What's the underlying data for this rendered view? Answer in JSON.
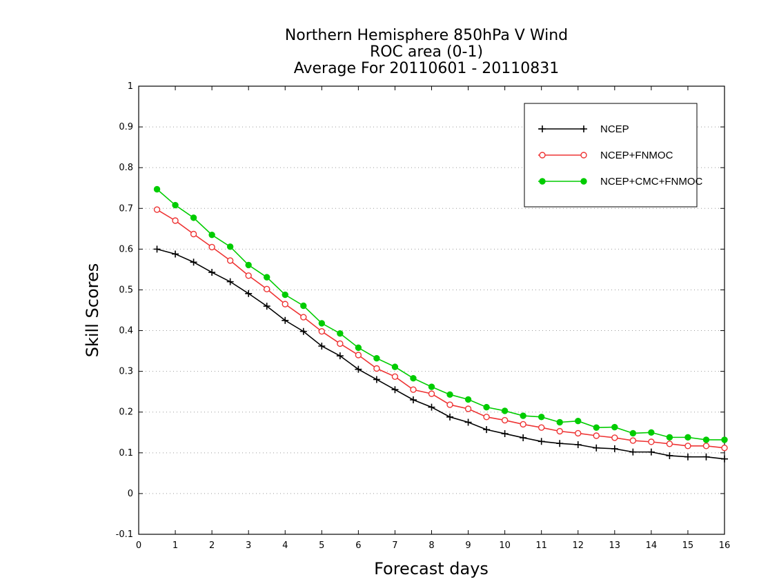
{
  "chart_data": {
    "type": "line",
    "title": [
      "Northern Hemisphere 850hPa V Wind",
      "ROC area (0-1)",
      "Average For 20110601 - 20110831"
    ],
    "xlabel": "Forecast days",
    "ylabel": "Skill Scores",
    "xlim": [
      0,
      16
    ],
    "ylim": [
      -0.1,
      1
    ],
    "xticks": [
      "0",
      "1",
      "2",
      "3",
      "4",
      "5",
      "6",
      "7",
      "8",
      "9",
      "10",
      "11",
      "12",
      "13",
      "14",
      "15",
      "16"
    ],
    "yticks": [
      "-0.1",
      "0",
      "0.1",
      "0.2",
      "0.3",
      "0.4",
      "0.5",
      "0.6",
      "0.7",
      "0.8",
      "0.9",
      "1"
    ],
    "grid": "horizontal-dotted",
    "legend_position": "top-right",
    "x": [
      0.5,
      1,
      1.5,
      2,
      2.5,
      3,
      3.5,
      4,
      4.5,
      5,
      5.5,
      6,
      6.5,
      7,
      7.5,
      8,
      8.5,
      9,
      9.5,
      10,
      10.5,
      11,
      11.5,
      12,
      12.5,
      13,
      13.5,
      14,
      14.5,
      15,
      15.5,
      16
    ],
    "series": [
      {
        "name": "NCEP",
        "color": "#000000",
        "marker": "plus",
        "values": [
          0.6,
          0.588,
          0.568,
          0.543,
          0.52,
          0.491,
          0.46,
          0.425,
          0.398,
          0.362,
          0.338,
          0.305,
          0.28,
          0.255,
          0.23,
          0.212,
          0.188,
          0.175,
          0.157,
          0.147,
          0.137,
          0.128,
          0.123,
          0.12,
          0.112,
          0.11,
          0.102,
          0.102,
          0.093,
          0.09,
          0.09,
          0.085
        ]
      },
      {
        "name": "NCEP+FNMOC",
        "color": "#ee3333",
        "marker": "open-circle",
        "values": [
          0.697,
          0.67,
          0.637,
          0.605,
          0.572,
          0.535,
          0.502,
          0.465,
          0.433,
          0.398,
          0.368,
          0.34,
          0.307,
          0.287,
          0.255,
          0.245,
          0.218,
          0.208,
          0.188,
          0.18,
          0.17,
          0.162,
          0.153,
          0.148,
          0.142,
          0.137,
          0.13,
          0.127,
          0.122,
          0.117,
          0.117,
          0.112
        ]
      },
      {
        "name": "NCEP+CMC+FNMOC",
        "color": "#00cc00",
        "marker": "filled-circle",
        "values": [
          0.747,
          0.708,
          0.677,
          0.635,
          0.606,
          0.561,
          0.531,
          0.488,
          0.461,
          0.418,
          0.393,
          0.358,
          0.332,
          0.311,
          0.283,
          0.262,
          0.243,
          0.231,
          0.212,
          0.203,
          0.191,
          0.188,
          0.175,
          0.178,
          0.162,
          0.163,
          0.148,
          0.15,
          0.138,
          0.138,
          0.132,
          0.132
        ]
      }
    ]
  }
}
